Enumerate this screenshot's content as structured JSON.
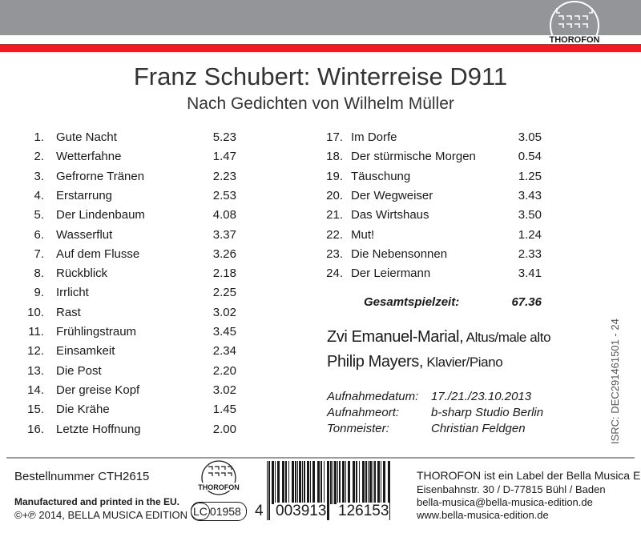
{
  "label_logo": "THOROFON",
  "title": "Franz Schubert: Winterreise D911",
  "subtitle": "Nach Gedichten von Wilhelm Müller",
  "tracks": [
    {
      "no": "1.",
      "title": "Gute Nacht",
      "time": "5.23"
    },
    {
      "no": "2.",
      "title": "Wetterfahne",
      "time": "1.47"
    },
    {
      "no": "3.",
      "title": "Gefrorne Tränen",
      "time": "2.23"
    },
    {
      "no": "4.",
      "title": "Erstarrung",
      "time": "2.53"
    },
    {
      "no": "5.",
      "title": "Der Lindenbaum",
      "time": "4.08"
    },
    {
      "no": "6.",
      "title": "Wasserflut",
      "time": "3.37"
    },
    {
      "no": "7.",
      "title": "Auf dem Flusse",
      "time": "3.26"
    },
    {
      "no": "8.",
      "title": "Rückblick",
      "time": "2.18"
    },
    {
      "no": "9.",
      "title": "Irrlicht",
      "time": "2.25"
    },
    {
      "no": "10.",
      "title": "Rast",
      "time": "3.02"
    },
    {
      "no": "11.",
      "title": "Frühlingstraum",
      "time": "3.45"
    },
    {
      "no": "12.",
      "title": "Einsamkeit",
      "time": "2.34"
    },
    {
      "no": "13.",
      "title": "Die Post",
      "time": "2.20"
    },
    {
      "no": "14.",
      "title": "Der greise Kopf",
      "time": "3.02"
    },
    {
      "no": "15.",
      "title": "Die Krähe",
      "time": "1.45"
    },
    {
      "no": "16.",
      "title": "Letzte Hoffnung",
      "time": "2.00"
    },
    {
      "no": "17.",
      "title": "Im Dorfe",
      "time": "3.05"
    },
    {
      "no": "18.",
      "title": "Der stürmische Morgen",
      "time": "0.54"
    },
    {
      "no": "19.",
      "title": "Täuschung",
      "time": "1.25"
    },
    {
      "no": "20.",
      "title": "Der Wegweiser",
      "time": "3.43"
    },
    {
      "no": "21.",
      "title": "Das Wirtshaus",
      "time": "3.50"
    },
    {
      "no": "22.",
      "title": "Mut!",
      "time": "1.24"
    },
    {
      "no": "23.",
      "title": "Die Nebensonnen",
      "time": "2.33"
    },
    {
      "no": "24.",
      "title": "Der Leiermann",
      "time": "3.41"
    }
  ],
  "total": {
    "label": "Gesamtspielzeit:",
    "value": "67.36"
  },
  "performers": [
    {
      "name": "Zvi Emanuel-Marial,",
      "role": "Altus/male alto"
    },
    {
      "name": "Philip Mayers,",
      "role": "Klavier/Piano"
    }
  ],
  "recording": [
    {
      "label": "Aufnahmedatum:",
      "value": "17./21./23.10.2013"
    },
    {
      "label": "Aufnahmeort:",
      "value": "b-sharp Studio Berlin"
    },
    {
      "label": "Tonmeister:",
      "value": "Christian Feldgen"
    }
  ],
  "isrc": "ISRC: DEC291461501 - 24",
  "footer": {
    "order_number": "Bestellnummer CTH2615",
    "manufactured": "Manufactured and printed in the EU.",
    "copyright": "©+℗ 2014, BELLA MUSICA EDITION",
    "lc_prefix": "LC",
    "lc_code": "01958",
    "barcode_first": "4",
    "barcode_left": "003913",
    "barcode_right": "126153",
    "label_lines": [
      "THOROFON ist ein Label der Bella Musica Edition",
      "Eisenbahnstr. 30 / D-77815 Bühl / Baden",
      "bella-musica@bella-musica-edition.de",
      "www.bella-musica-edition.de"
    ]
  },
  "colors": {
    "gray_band": "#939598",
    "red_band": "#ed1c24"
  }
}
